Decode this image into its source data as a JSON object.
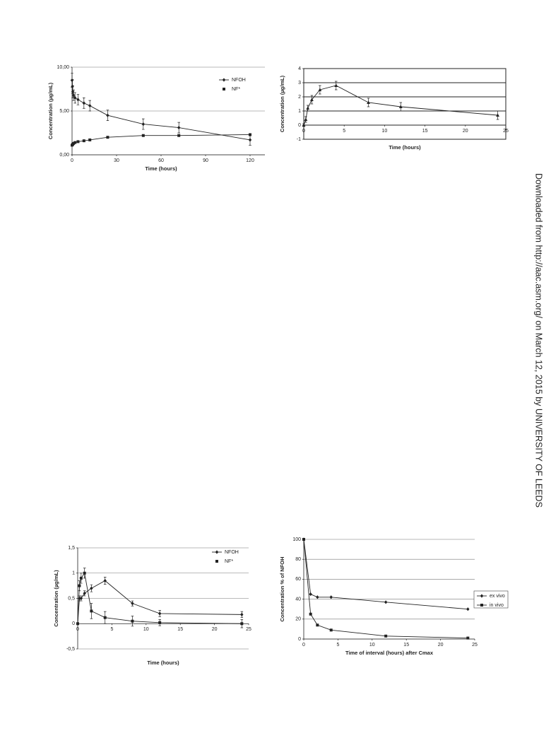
{
  "chart_data": [
    {
      "type": "line",
      "ylabel": "Concentration (µg/mL)",
      "xlabel": "Time (hours)",
      "xlim": [
        0,
        130
      ],
      "xticks": [
        0,
        30,
        60,
        90,
        120
      ],
      "ylim": [
        0,
        10
      ],
      "yticks": [
        {
          "value": 0,
          "label": "0,00"
        },
        {
          "value": 5,
          "label": "5,00"
        },
        {
          "value": 10,
          "label": "10,00"
        }
      ],
      "grid": true,
      "frame": false,
      "legend": "upper right",
      "series": [
        {
          "name": "NFOH",
          "color": "#222222",
          "marker": "diamond",
          "x": [
            0,
            0.25,
            0.5,
            1,
            2,
            4,
            8,
            12,
            24,
            48,
            72,
            120
          ],
          "values": [
            8.5,
            7.8,
            7.2,
            6.8,
            6.5,
            6.3,
            5.9,
            5.6,
            4.5,
            3.5,
            3.1,
            1.7
          ],
          "errors": [
            0.8,
            0.8,
            0.7,
            0.6,
            0.6,
            0.6,
            0.6,
            0.6,
            0.6,
            0.6,
            0.6,
            0.6
          ]
        },
        {
          "name": "NF*",
          "color": "#222222",
          "marker": "square",
          "x": [
            0,
            0.5,
            1,
            2,
            4,
            8,
            12,
            24,
            48,
            72,
            120
          ],
          "values": [
            1.1,
            1.2,
            1.3,
            1.4,
            1.5,
            1.6,
            1.7,
            2.0,
            2.2,
            2.2,
            2.3
          ],
          "errors": [
            0.1,
            0.1,
            0.1,
            0.1,
            0.1,
            0.1,
            0.1,
            0.1,
            0.1,
            0.1,
            0.1
          ]
        }
      ]
    },
    {
      "type": "line",
      "ylabel": "Concentration (µg/mL)",
      "xlabel": "Time (hours)",
      "xlim": [
        0,
        25
      ],
      "xticks": [
        0,
        5,
        10,
        15,
        20,
        25
      ],
      "ylim": [
        -1,
        4
      ],
      "yticks": [
        -1,
        0,
        1,
        2,
        3,
        4
      ],
      "grid": true,
      "frame": true,
      "series": [
        {
          "color": "#222222",
          "marker": "triangle",
          "x": [
            0,
            0.25,
            0.5,
            1,
            2,
            4,
            8,
            12,
            24
          ],
          "values": [
            0,
            0.4,
            1.2,
            1.8,
            2.5,
            2.8,
            1.6,
            1.3,
            0.7
          ],
          "errors": [
            0.1,
            0.2,
            0.2,
            0.3,
            0.3,
            0.3,
            0.3,
            0.3,
            0.3
          ]
        }
      ]
    },
    {
      "type": "line",
      "ylabel": "Concentration (µg/mL)",
      "xlabel": "Time (hours)",
      "xlim": [
        0,
        25
      ],
      "xticks": [
        0,
        5,
        10,
        15,
        20,
        25
      ],
      "ylim": [
        -0.5,
        1.5
      ],
      "yticks": [
        {
          "value": -0.5,
          "label": "-0,5"
        },
        0,
        {
          "value": 0.5,
          "label": "0,5"
        },
        1,
        {
          "value": 1.5,
          "label": "1,5"
        }
      ],
      "grid": true,
      "frame": false,
      "legend": "upper right",
      "series": [
        {
          "name": "NFOH",
          "color": "#222222",
          "marker": "diamond",
          "x": [
            0,
            0.25,
            0.5,
            1,
            2,
            4,
            8,
            12,
            24
          ],
          "values": [
            0,
            0.5,
            0.5,
            0.6,
            0.7,
            0.85,
            0.4,
            0.2,
            0.18
          ],
          "errors": [
            0,
            0.05,
            0.05,
            0.05,
            0.07,
            0.07,
            0.05,
            0.06,
            0.06
          ]
        },
        {
          "name": "NF*",
          "color": "#222222",
          "marker": "square",
          "x": [
            0,
            0.25,
            0.5,
            1,
            2,
            4,
            8,
            12,
            24
          ],
          "values": [
            0,
            0.75,
            0.9,
            1.0,
            0.25,
            0.12,
            0.05,
            0.02,
            0.0
          ],
          "errors": [
            0,
            0.1,
            0.1,
            0.1,
            0.15,
            0.12,
            0.1,
            0.06,
            0.08
          ]
        }
      ]
    },
    {
      "type": "line",
      "ylabel": "Concentration % of NFOH",
      "xlabel": "Time of interval (hours) after Cmax",
      "xlim": [
        0,
        25
      ],
      "xticks": [
        0,
        5,
        10,
        15,
        20,
        25
      ],
      "ylim": [
        0,
        100
      ],
      "yticks": [
        0,
        20,
        40,
        60,
        80,
        100
      ],
      "grid": true,
      "frame": false,
      "legend": "right",
      "series": [
        {
          "name": "ex vivo",
          "color": "#222222",
          "marker": "diamond",
          "x": [
            0,
            1,
            2,
            4,
            12,
            24
          ],
          "values": [
            100,
            45,
            42,
            42,
            37,
            30
          ]
        },
        {
          "name": "in vivo",
          "color": "#222222",
          "marker": "square",
          "x": [
            0,
            1,
            2,
            4,
            12,
            24
          ],
          "values": [
            100,
            25,
            14,
            9,
            3,
            1
          ]
        }
      ]
    }
  ],
  "watermark": "Downloaded from http://aac.asm.org/ on March 12, 2015 by UNIVERSITY OF LEEDS"
}
